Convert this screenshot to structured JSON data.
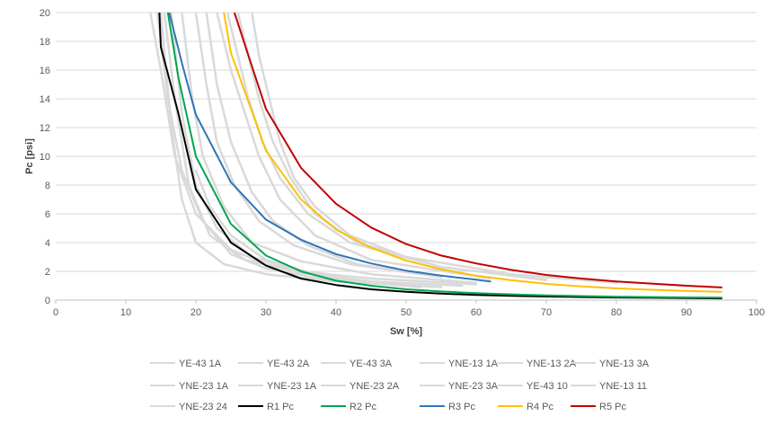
{
  "chart_data": {
    "type": "line",
    "title": "",
    "xlabel": "Sw [%]",
    "ylabel": "Pc [psi]",
    "xlim": [
      0,
      100
    ],
    "ylim": [
      0,
      20
    ],
    "xticks": [
      0,
      10,
      20,
      30,
      40,
      50,
      60,
      70,
      80,
      90,
      100
    ],
    "yticks": [
      0,
      2,
      4,
      6,
      8,
      10,
      12,
      14,
      16,
      18,
      20
    ],
    "grid": "horizontal",
    "legend_position": "bottom",
    "series": [
      {
        "name": "YE-43 1A",
        "color": "#d9d9d9",
        "x": [
          13.5,
          15,
          17,
          20,
          25,
          30,
          40,
          50
        ],
        "y": [
          20,
          16,
          10,
          6,
          3.5,
          2.5,
          1.5,
          1
        ]
      },
      {
        "name": "YE-43 2A",
        "color": "#d9d9d9",
        "x": [
          14.5,
          16,
          18,
          21,
          25,
          30,
          40,
          52
        ],
        "y": [
          20,
          14,
          9,
          5.5,
          3.2,
          2.2,
          1.3,
          1
        ]
      },
      {
        "name": "YE-43 3A",
        "color": "#d9d9d9",
        "x": [
          15,
          16.5,
          18,
          20,
          24,
          30,
          40,
          55
        ],
        "y": [
          20,
          12,
          7,
          4,
          2.5,
          1.8,
          1.3,
          0.9
        ]
      },
      {
        "name": "YNE-13 1A",
        "color": "#d9d9d9",
        "x": [
          15.5,
          17,
          19,
          22,
          27,
          35,
          45,
          58
        ],
        "y": [
          20,
          14,
          8,
          4.5,
          2.8,
          1.9,
          1.3,
          1
        ]
      },
      {
        "name": "YNE-13 2A",
        "color": "#d9d9d9",
        "x": [
          16.5,
          18,
          20,
          23,
          28,
          35,
          45,
          60
        ],
        "y": [
          20,
          13,
          8,
          5,
          3,
          2,
          1.5,
          1.1
        ]
      },
      {
        "name": "YNE-13 3A",
        "color": "#d9d9d9",
        "x": [
          18,
          19.5,
          21,
          24,
          28,
          35,
          45,
          60
        ],
        "y": [
          20,
          14,
          10,
          6.5,
          4,
          2.7,
          1.8,
          1.2
        ]
      },
      {
        "name": "YNE-23 1A",
        "color": "#d9d9d9",
        "x": [
          20,
          21.5,
          23,
          25.5,
          29,
          34,
          42,
          55
        ],
        "y": [
          20,
          15,
          11,
          8,
          5.5,
          3.8,
          2.5,
          1.6
        ]
      },
      {
        "name": "YNE-23 1A",
        "color": "#d9d9d9",
        "x": [
          21.5,
          23,
          25,
          28,
          31,
          36,
          43,
          55
        ],
        "y": [
          20,
          15,
          11,
          7.5,
          5.5,
          3.8,
          2.5,
          1.6
        ]
      },
      {
        "name": "YNE-23 2A",
        "color": "#d9d9d9",
        "x": [
          23,
          25,
          27,
          29,
          32,
          37,
          45,
          62
        ],
        "y": [
          20,
          16,
          13,
          10,
          7,
          4.5,
          2.8,
          1.5
        ]
      },
      {
        "name": "YNE-23 3A",
        "color": "#d9d9d9",
        "x": [
          24.5,
          26,
          27.5,
          29.5,
          32,
          36,
          42,
          55
        ],
        "y": [
          20,
          17,
          14,
          11,
          8.5,
          6,
          4,
          2.3
        ]
      },
      {
        "name": "YE-43 10",
        "color": "#d9d9d9",
        "x": [
          26,
          27.5,
          29,
          31,
          33.5,
          37,
          43,
          55,
          70
        ],
        "y": [
          20,
          17,
          14,
          11,
          8.5,
          6,
          4,
          2.3,
          1.4
        ]
      },
      {
        "name": "YNE-13 11",
        "color": "#d9d9d9",
        "x": [
          28,
          29,
          30.5,
          32,
          34,
          37,
          42,
          50,
          65,
          80
        ],
        "y": [
          20,
          17,
          14,
          11,
          8.5,
          6.5,
          4.5,
          3,
          1.8,
          1.2
        ]
      },
      {
        "name": "YNE-23 24",
        "color": "#d9d9d9",
        "x": [
          20,
          22,
          25,
          30,
          40,
          52
        ],
        "y": [
          9,
          6.5,
          4.5,
          2.8,
          1.4,
          0.9
        ]
      },
      {
        "name": "R1 Pc",
        "color": "#000000",
        "x": [
          14.8,
          15,
          17.5,
          20,
          25,
          30,
          35,
          40,
          45,
          50,
          55,
          60,
          65,
          70,
          75,
          80,
          85,
          90,
          95
        ],
        "y": [
          20,
          17.6,
          13,
          7.7,
          4,
          2.4,
          1.5,
          1.05,
          0.75,
          0.58,
          0.45,
          0.36,
          0.3,
          0.25,
          0.21,
          0.18,
          0.16,
          0.14,
          0.12
        ]
      },
      {
        "name": "R2 Pc",
        "color": "#00a651",
        "x": [
          16,
          17.5,
          20,
          25,
          30,
          35,
          40,
          45,
          50,
          55,
          60,
          65,
          70,
          75,
          80,
          85,
          90,
          95
        ],
        "y": [
          20,
          15.5,
          10,
          5.3,
          3.1,
          2,
          1.35,
          1,
          0.75,
          0.6,
          0.48,
          0.4,
          0.33,
          0.28,
          0.24,
          0.21,
          0.19,
          0.17
        ]
      },
      {
        "name": "R3 Pc",
        "color": "#2e75b6",
        "x": [
          16.2,
          18,
          20,
          25,
          30,
          35,
          40,
          45,
          50,
          55,
          60,
          62
        ],
        "y": [
          20,
          16.5,
          12.9,
          8.2,
          5.6,
          4.2,
          3.2,
          2.55,
          2.05,
          1.7,
          1.42,
          1.3
        ]
      },
      {
        "name": "R4 Pc",
        "color": "#ffc000",
        "x": [
          24,
          25,
          30,
          35,
          40,
          45,
          50,
          55,
          60,
          65,
          70,
          75,
          80,
          85,
          90,
          95
        ],
        "y": [
          20,
          17.2,
          10.4,
          7,
          4.9,
          3.65,
          2.75,
          2.15,
          1.7,
          1.38,
          1.13,
          0.95,
          0.82,
          0.72,
          0.64,
          0.57
        ]
      },
      {
        "name": "R5 Pc",
        "color": "#c00000",
        "x": [
          25.5,
          27.5,
          30,
          35,
          40,
          45,
          50,
          55,
          60,
          65,
          70,
          75,
          80,
          85,
          90,
          95
        ],
        "y": [
          20,
          17,
          13.3,
          9.2,
          6.7,
          5.05,
          3.9,
          3.1,
          2.55,
          2.1,
          1.75,
          1.5,
          1.3,
          1.15,
          1.0,
          0.88
        ]
      }
    ]
  }
}
